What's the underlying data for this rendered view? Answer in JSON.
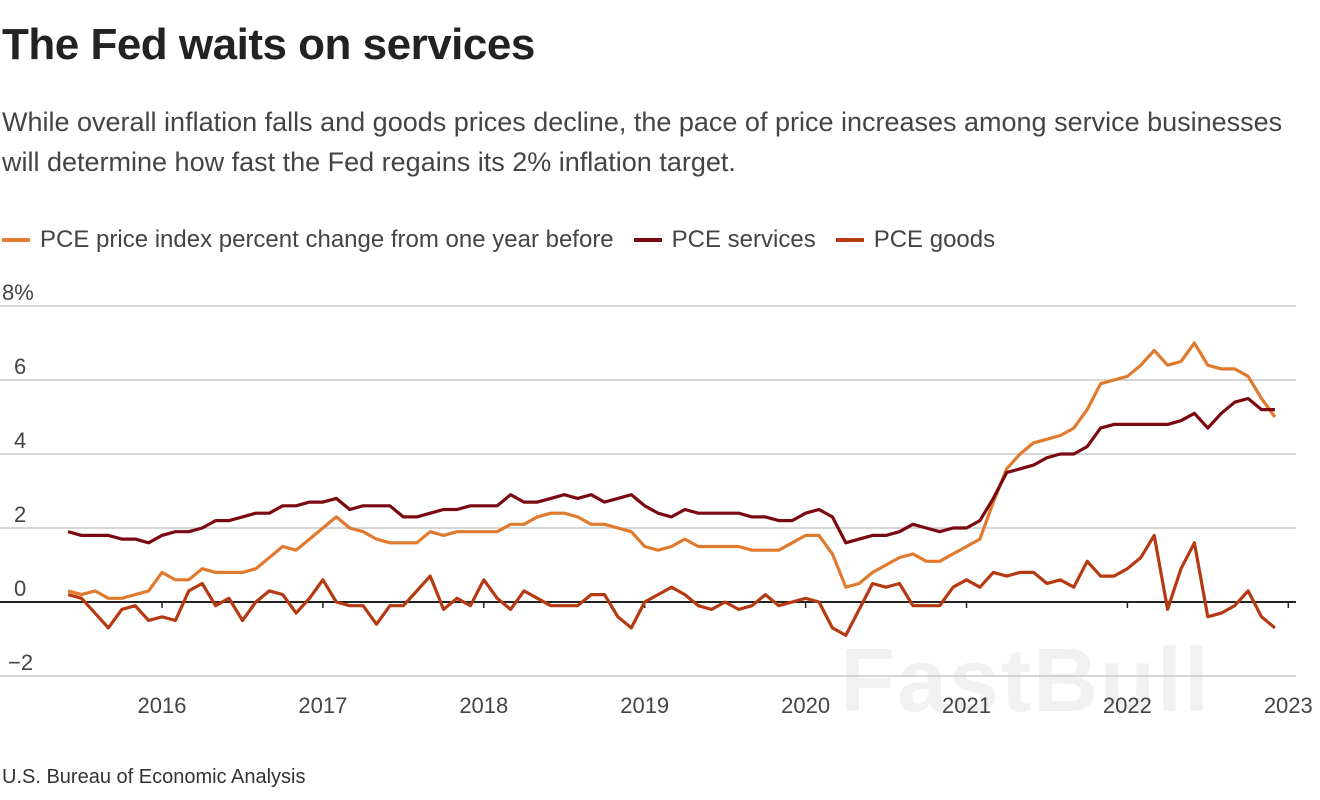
{
  "chart_data": {
    "type": "line",
    "title": "The Fed waits on services",
    "subtitle": "While overall inflation falls and goods prices decline, the pace of price increases among service businesses will determine how fast the Fed regains its 2% inflation target.",
    "source": "U.S. Bureau of Economic Analysis",
    "watermark": "FastBull",
    "x_start": "2015-06",
    "x_end": "2022-12",
    "x_frequency": "monthly",
    "xticks": [
      "2016",
      "2017",
      "2018",
      "2019",
      "2020",
      "2021",
      "2022",
      "2023"
    ],
    "yticks": [
      "8%",
      "6",
      "4",
      "2",
      "0",
      "−2"
    ],
    "ylim": [
      -2,
      8
    ],
    "grid": true,
    "legend": "top-left",
    "series": [
      {
        "name": "PCE price index percent change from one year before",
        "color": "#e07a2e",
        "values": [
          0.3,
          0.2,
          0.3,
          0.1,
          0.1,
          0.2,
          0.3,
          0.8,
          0.6,
          0.6,
          0.9,
          0.8,
          0.8,
          0.8,
          0.9,
          1.2,
          1.5,
          1.4,
          1.7,
          2.0,
          2.3,
          2.0,
          1.9,
          1.7,
          1.6,
          1.6,
          1.6,
          1.9,
          1.8,
          1.9,
          1.9,
          1.9,
          1.9,
          2.1,
          2.1,
          2.3,
          2.4,
          2.4,
          2.3,
          2.1,
          2.1,
          2.0,
          1.9,
          1.5,
          1.4,
          1.5,
          1.7,
          1.5,
          1.5,
          1.5,
          1.5,
          1.4,
          1.4,
          1.4,
          1.6,
          1.8,
          1.8,
          1.3,
          0.4,
          0.5,
          0.8,
          1.0,
          1.2,
          1.3,
          1.1,
          1.1,
          1.3,
          1.5,
          1.7,
          2.7,
          3.6,
          4.0,
          4.3,
          4.4,
          4.5,
          4.7,
          5.2,
          5.9,
          6.0,
          6.1,
          6.4,
          6.8,
          6.4,
          6.5,
          7.0,
          6.4,
          6.3,
          6.3,
          6.1,
          5.5,
          5.0
        ]
      },
      {
        "name": "PCE services",
        "color": "#7a0a10",
        "values": [
          1.9,
          1.8,
          1.8,
          1.8,
          1.7,
          1.7,
          1.6,
          1.8,
          1.9,
          1.9,
          2.0,
          2.2,
          2.2,
          2.3,
          2.4,
          2.4,
          2.6,
          2.6,
          2.7,
          2.7,
          2.8,
          2.5,
          2.6,
          2.6,
          2.6,
          2.3,
          2.3,
          2.4,
          2.5,
          2.5,
          2.6,
          2.6,
          2.6,
          2.9,
          2.7,
          2.7,
          2.8,
          2.9,
          2.8,
          2.9,
          2.7,
          2.8,
          2.9,
          2.6,
          2.4,
          2.3,
          2.5,
          2.4,
          2.4,
          2.4,
          2.4,
          2.3,
          2.3,
          2.2,
          2.2,
          2.4,
          2.5,
          2.3,
          1.6,
          1.7,
          1.8,
          1.8,
          1.9,
          2.1,
          2.0,
          1.9,
          2.0,
          2.0,
          2.2,
          2.8,
          3.5,
          3.6,
          3.7,
          3.9,
          4.0,
          4.0,
          4.2,
          4.7,
          4.8,
          4.8,
          4.8,
          4.8,
          4.8,
          4.9,
          5.1,
          4.7,
          5.1,
          5.4,
          5.5,
          5.2,
          5.2
        ]
      },
      {
        "name": "PCE goods",
        "color": "#b53a12",
        "values": [
          0.2,
          0.1,
          -0.3,
          -0.7,
          -0.2,
          -0.1,
          -0.5,
          -0.4,
          -0.5,
          0.3,
          0.5,
          -0.1,
          0.1,
          -0.5,
          0.0,
          0.3,
          0.2,
          -0.3,
          0.1,
          0.6,
          0.0,
          -0.1,
          -0.1,
          -0.6,
          -0.1,
          -0.1,
          0.3,
          0.7,
          -0.2,
          0.1,
          -0.1,
          0.6,
          0.1,
          -0.2,
          0.3,
          0.1,
          -0.1,
          -0.1,
          -0.1,
          0.2,
          0.2,
          -0.4,
          -0.7,
          0.0,
          0.2,
          0.4,
          0.2,
          -0.1,
          -0.2,
          0.0,
          -0.2,
          -0.1,
          0.2,
          -0.1,
          0.0,
          0.1,
          0.0,
          -0.7,
          -0.9,
          -0.2,
          0.5,
          0.4,
          0.5,
          -0.1,
          -0.1,
          -0.1,
          0.4,
          0.6,
          0.4,
          0.8,
          0.7,
          0.8,
          0.8,
          0.5,
          0.6,
          0.4,
          1.1,
          0.7,
          0.7,
          0.9,
          1.2,
          1.8,
          -0.2,
          0.9,
          1.6,
          -0.4,
          -0.3,
          -0.1,
          0.3,
          -0.4,
          -0.7
        ]
      }
    ]
  }
}
